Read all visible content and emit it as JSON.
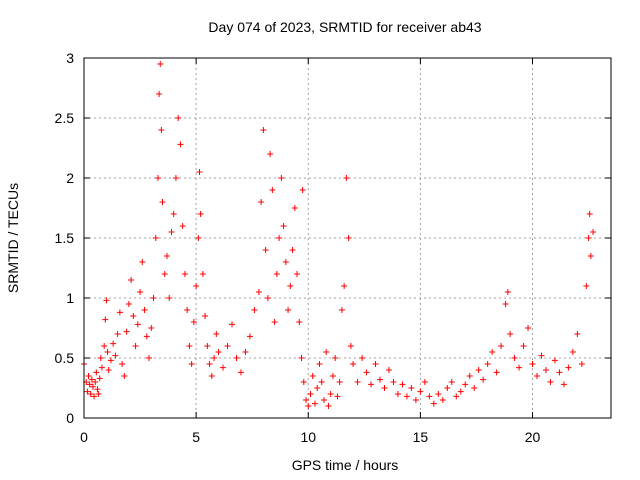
{
  "chart_data": {
    "type": "scatter",
    "title": "Day 074 of 2023, SRMTID for receiver ab43",
    "xlabel": "GPS time / hours",
    "ylabel": "SRMTID / TECUs",
    "xlim": [
      0,
      23.5
    ],
    "ylim": [
      0,
      3
    ],
    "xticks": [
      0,
      5,
      10,
      15,
      20
    ],
    "xtick_labels": [
      "0",
      "5",
      "10",
      "15",
      "20"
    ],
    "yticks": [
      0,
      0.5,
      1,
      1.5,
      2,
      2.5,
      3
    ],
    "ytick_labels": [
      "0",
      "0.5",
      "1",
      "1.5",
      "2",
      "2.5",
      "3"
    ],
    "grid": true,
    "marker": "+",
    "marker_color": "#ff0000",
    "series": [
      {
        "name": "SRMTID",
        "points": [
          [
            0.0,
            0.45
          ],
          [
            0.1,
            0.3
          ],
          [
            0.15,
            0.22
          ],
          [
            0.2,
            0.35
          ],
          [
            0.25,
            0.28
          ],
          [
            0.3,
            0.2
          ],
          [
            0.35,
            0.32
          ],
          [
            0.4,
            0.26
          ],
          [
            0.45,
            0.18
          ],
          [
            0.5,
            0.3
          ],
          [
            0.55,
            0.38
          ],
          [
            0.6,
            0.24
          ],
          [
            0.65,
            0.2
          ],
          [
            0.7,
            0.33
          ],
          [
            0.75,
            0.5
          ],
          [
            0.8,
            0.42
          ],
          [
            0.9,
            0.6
          ],
          [
            0.95,
            0.82
          ],
          [
            1.0,
            0.98
          ],
          [
            1.05,
            0.55
          ],
          [
            1.1,
            0.4
          ],
          [
            1.2,
            0.48
          ],
          [
            1.3,
            0.62
          ],
          [
            1.4,
            0.52
          ],
          [
            1.5,
            0.7
          ],
          [
            1.6,
            0.88
          ],
          [
            1.7,
            0.45
          ],
          [
            1.8,
            0.35
          ],
          [
            1.9,
            0.72
          ],
          [
            2.0,
            0.95
          ],
          [
            2.1,
            1.15
          ],
          [
            2.2,
            0.85
          ],
          [
            2.3,
            0.6
          ],
          [
            2.4,
            0.78
          ],
          [
            2.5,
            1.05
          ],
          [
            2.6,
            1.3
          ],
          [
            2.7,
            0.9
          ],
          [
            2.8,
            0.68
          ],
          [
            2.9,
            0.5
          ],
          [
            3.0,
            0.75
          ],
          [
            3.1,
            1.0
          ],
          [
            3.2,
            1.5
          ],
          [
            3.3,
            2.0
          ],
          [
            3.35,
            2.7
          ],
          [
            3.4,
            2.95
          ],
          [
            3.45,
            2.4
          ],
          [
            3.5,
            1.8
          ],
          [
            3.6,
            1.2
          ],
          [
            3.7,
            1.35
          ],
          [
            3.8,
            1.0
          ],
          [
            3.9,
            1.55
          ],
          [
            4.0,
            1.7
          ],
          [
            4.1,
            2.0
          ],
          [
            4.2,
            2.5
          ],
          [
            4.3,
            2.28
          ],
          [
            4.4,
            1.6
          ],
          [
            4.5,
            1.2
          ],
          [
            4.6,
            0.9
          ],
          [
            4.7,
            0.6
          ],
          [
            4.8,
            0.45
          ],
          [
            4.9,
            0.8
          ],
          [
            5.0,
            1.1
          ],
          [
            5.1,
            1.5
          ],
          [
            5.15,
            2.05
          ],
          [
            5.2,
            1.7
          ],
          [
            5.3,
            1.2
          ],
          [
            5.4,
            0.85
          ],
          [
            5.5,
            0.6
          ],
          [
            5.6,
            0.45
          ],
          [
            5.7,
            0.35
          ],
          [
            5.8,
            0.5
          ],
          [
            5.9,
            0.7
          ],
          [
            6.0,
            0.55
          ],
          [
            6.2,
            0.42
          ],
          [
            6.4,
            0.6
          ],
          [
            6.6,
            0.78
          ],
          [
            6.8,
            0.5
          ],
          [
            7.0,
            0.38
          ],
          [
            7.2,
            0.55
          ],
          [
            7.4,
            0.68
          ],
          [
            7.6,
            0.9
          ],
          [
            7.8,
            1.05
          ],
          [
            7.9,
            1.8
          ],
          [
            8.0,
            2.4
          ],
          [
            8.1,
            1.4
          ],
          [
            8.2,
            1.0
          ],
          [
            8.3,
            2.2
          ],
          [
            8.4,
            1.9
          ],
          [
            8.5,
            0.8
          ],
          [
            8.6,
            1.2
          ],
          [
            8.7,
            1.5
          ],
          [
            8.8,
            2.0
          ],
          [
            8.9,
            1.6
          ],
          [
            9.0,
            1.3
          ],
          [
            9.1,
            0.9
          ],
          [
            9.2,
            1.1
          ],
          [
            9.3,
            1.4
          ],
          [
            9.4,
            1.75
          ],
          [
            9.5,
            1.2
          ],
          [
            9.6,
            0.8
          ],
          [
            9.7,
            0.5
          ],
          [
            9.75,
            1.9
          ],
          [
            9.8,
            0.3
          ],
          [
            9.9,
            0.15
          ],
          [
            10.0,
            0.1
          ],
          [
            10.1,
            0.2
          ],
          [
            10.2,
            0.35
          ],
          [
            10.3,
            0.12
          ],
          [
            10.4,
            0.25
          ],
          [
            10.5,
            0.45
          ],
          [
            10.6,
            0.3
          ],
          [
            10.7,
            0.15
          ],
          [
            10.8,
            0.55
          ],
          [
            10.9,
            0.1
          ],
          [
            11.0,
            0.2
          ],
          [
            11.1,
            0.35
          ],
          [
            11.2,
            0.5
          ],
          [
            11.3,
            0.18
          ],
          [
            11.4,
            0.3
          ],
          [
            11.5,
            0.9
          ],
          [
            11.6,
            1.1
          ],
          [
            11.7,
            2.0
          ],
          [
            11.8,
            1.5
          ],
          [
            11.9,
            0.6
          ],
          [
            12.0,
            0.45
          ],
          [
            12.2,
            0.3
          ],
          [
            12.4,
            0.5
          ],
          [
            12.6,
            0.38
          ],
          [
            12.8,
            0.28
          ],
          [
            13.0,
            0.45
          ],
          [
            13.2,
            0.32
          ],
          [
            13.4,
            0.25
          ],
          [
            13.6,
            0.4
          ],
          [
            13.8,
            0.3
          ],
          [
            14.0,
            0.2
          ],
          [
            14.2,
            0.28
          ],
          [
            14.4,
            0.18
          ],
          [
            14.6,
            0.25
          ],
          [
            14.8,
            0.15
          ],
          [
            15.0,
            0.22
          ],
          [
            15.2,
            0.3
          ],
          [
            15.4,
            0.18
          ],
          [
            15.6,
            0.12
          ],
          [
            15.8,
            0.2
          ],
          [
            16.0,
            0.15
          ],
          [
            16.2,
            0.25
          ],
          [
            16.4,
            0.3
          ],
          [
            16.6,
            0.18
          ],
          [
            16.8,
            0.22
          ],
          [
            17.0,
            0.28
          ],
          [
            17.2,
            0.35
          ],
          [
            17.4,
            0.25
          ],
          [
            17.6,
            0.4
          ],
          [
            17.8,
            0.32
          ],
          [
            18.0,
            0.45
          ],
          [
            18.2,
            0.55
          ],
          [
            18.4,
            0.38
          ],
          [
            18.6,
            0.6
          ],
          [
            18.8,
            0.95
          ],
          [
            18.9,
            1.05
          ],
          [
            19.0,
            0.7
          ],
          [
            19.2,
            0.5
          ],
          [
            19.4,
            0.42
          ],
          [
            19.6,
            0.6
          ],
          [
            19.8,
            0.75
          ],
          [
            20.0,
            0.45
          ],
          [
            20.2,
            0.35
          ],
          [
            20.4,
            0.52
          ],
          [
            20.6,
            0.4
          ],
          [
            20.8,
            0.3
          ],
          [
            21.0,
            0.48
          ],
          [
            21.2,
            0.38
          ],
          [
            21.4,
            0.28
          ],
          [
            21.6,
            0.42
          ],
          [
            21.8,
            0.55
          ],
          [
            22.0,
            0.7
          ],
          [
            22.2,
            0.45
          ],
          [
            22.4,
            1.1
          ],
          [
            22.5,
            1.5
          ],
          [
            22.55,
            1.7
          ],
          [
            22.6,
            1.35
          ],
          [
            22.7,
            1.55
          ]
        ]
      }
    ]
  }
}
